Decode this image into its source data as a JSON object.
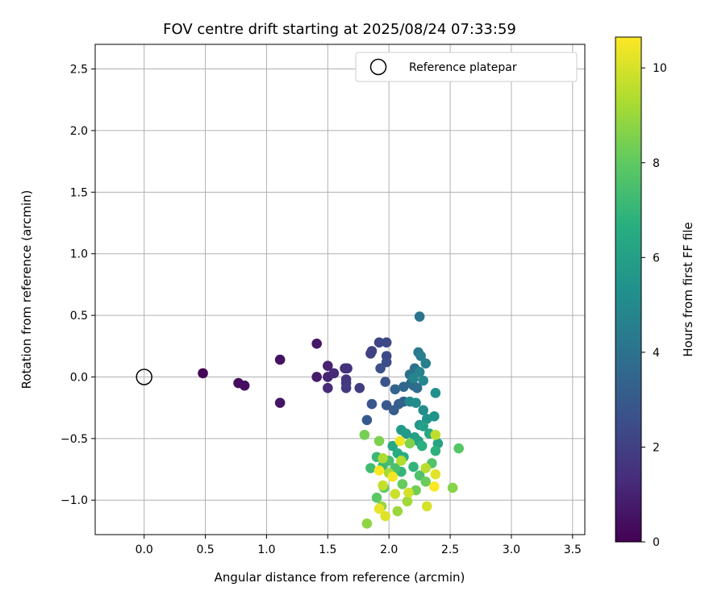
{
  "chart_data": {
    "type": "scatter",
    "title": "FOV centre drift starting at 2025/08/24 07:33:59",
    "xlabel": "Angular distance from reference (arcmin)",
    "ylabel": "Rotation from reference (arcmin)",
    "xlim": [
      -0.4,
      3.6
    ],
    "ylim": [
      -1.28,
      2.7
    ],
    "xticks": [
      "0.0",
      "0.5",
      "1.0",
      "1.5",
      "2.0",
      "2.5",
      "3.0",
      "3.5"
    ],
    "yticks": [
      "−1.0",
      "−0.5",
      "0.0",
      "0.5",
      "1.0",
      "1.5",
      "2.0",
      "2.5"
    ],
    "grid": true,
    "legend": {
      "placement": "top-right",
      "entries": [
        "Reference platepar"
      ]
    },
    "reference_point": {
      "x": 0.0,
      "y": 0.0
    },
    "colorbar": {
      "label": "Hours from first FF file",
      "colormap": "viridis",
      "range": [
        0,
        10.65
      ],
      "ticks": [
        "0",
        "2",
        "4",
        "6",
        "8",
        "10"
      ]
    },
    "points": [
      {
        "x": 0.48,
        "y": 0.03,
        "h": 0.1
      },
      {
        "x": 0.77,
        "y": -0.05,
        "h": 0.3
      },
      {
        "x": 0.82,
        "y": -0.07,
        "h": 0.4
      },
      {
        "x": 1.11,
        "y": 0.14,
        "h": 0.5
      },
      {
        "x": 1.11,
        "y": -0.21,
        "h": 0.6
      },
      {
        "x": 1.41,
        "y": 0.27,
        "h": 0.7
      },
      {
        "x": 1.41,
        "y": 0.0,
        "h": 0.8
      },
      {
        "x": 1.5,
        "y": 0.09,
        "h": 1.0
      },
      {
        "x": 1.5,
        "y": 0.0,
        "h": 1.1
      },
      {
        "x": 1.55,
        "y": 0.03,
        "h": 1.2
      },
      {
        "x": 1.5,
        "y": -0.09,
        "h": 1.3
      },
      {
        "x": 1.64,
        "y": 0.07,
        "h": 1.4
      },
      {
        "x": 1.66,
        "y": 0.07,
        "h": 1.5
      },
      {
        "x": 1.65,
        "y": -0.02,
        "h": 1.6
      },
      {
        "x": 1.65,
        "y": -0.05,
        "h": 1.7
      },
      {
        "x": 1.65,
        "y": -0.09,
        "h": 1.8
      },
      {
        "x": 1.76,
        "y": -0.09,
        "h": 1.9
      },
      {
        "x": 1.85,
        "y": 0.19,
        "h": 2.0
      },
      {
        "x": 1.86,
        "y": 0.21,
        "h": 2.1
      },
      {
        "x": 1.92,
        "y": 0.28,
        "h": 2.2
      },
      {
        "x": 1.98,
        "y": 0.28,
        "h": 2.3
      },
      {
        "x": 1.98,
        "y": 0.17,
        "h": 2.4
      },
      {
        "x": 1.98,
        "y": 0.12,
        "h": 2.5
      },
      {
        "x": 1.93,
        "y": 0.07,
        "h": 2.6
      },
      {
        "x": 1.97,
        "y": -0.04,
        "h": 2.7
      },
      {
        "x": 1.86,
        "y": -0.22,
        "h": 2.8
      },
      {
        "x": 1.98,
        "y": -0.23,
        "h": 2.9
      },
      {
        "x": 1.82,
        "y": -0.35,
        "h": 3.0
      },
      {
        "x": 2.04,
        "y": -0.27,
        "h": 3.1
      },
      {
        "x": 2.08,
        "y": -0.22,
        "h": 3.2
      },
      {
        "x": 2.12,
        "y": -0.2,
        "h": 3.3
      },
      {
        "x": 2.05,
        "y": -0.1,
        "h": 3.4
      },
      {
        "x": 2.12,
        "y": -0.08,
        "h": 3.5
      },
      {
        "x": 2.18,
        "y": -0.05,
        "h": 3.6
      },
      {
        "x": 2.2,
        "y": -0.07,
        "h": 3.7
      },
      {
        "x": 2.23,
        "y": -0.09,
        "h": 3.8
      },
      {
        "x": 2.17,
        "y": 0.02,
        "h": 3.9
      },
      {
        "x": 2.21,
        "y": 0.07,
        "h": 4.0
      },
      {
        "x": 2.25,
        "y": 0.49,
        "h": 4.1
      },
      {
        "x": 2.24,
        "y": 0.2,
        "h": 4.3
      },
      {
        "x": 2.26,
        "y": 0.17,
        "h": 4.5
      },
      {
        "x": 2.3,
        "y": 0.11,
        "h": 4.6
      },
      {
        "x": 2.25,
        "y": 0.04,
        "h": 4.7
      },
      {
        "x": 2.2,
        "y": -0.01,
        "h": 4.8
      },
      {
        "x": 2.28,
        "y": -0.03,
        "h": 4.9
      },
      {
        "x": 2.17,
        "y": -0.2,
        "h": 5.0
      },
      {
        "x": 2.22,
        "y": -0.21,
        "h": 5.1
      },
      {
        "x": 2.28,
        "y": -0.27,
        "h": 5.2
      },
      {
        "x": 2.38,
        "y": -0.13,
        "h": 5.3
      },
      {
        "x": 2.37,
        "y": -0.32,
        "h": 5.4
      },
      {
        "x": 2.31,
        "y": -0.34,
        "h": 5.5
      },
      {
        "x": 2.25,
        "y": -0.39,
        "h": 5.6
      },
      {
        "x": 2.1,
        "y": -0.43,
        "h": 5.7
      },
      {
        "x": 2.14,
        "y": -0.46,
        "h": 5.8
      },
      {
        "x": 2.21,
        "y": -0.49,
        "h": 5.9
      },
      {
        "x": 2.28,
        "y": -0.4,
        "h": 6.0
      },
      {
        "x": 2.24,
        "y": -0.52,
        "h": 6.1
      },
      {
        "x": 2.4,
        "y": -0.54,
        "h": 6.2
      },
      {
        "x": 2.33,
        "y": -0.46,
        "h": 6.3
      },
      {
        "x": 2.03,
        "y": -0.56,
        "h": 6.4
      },
      {
        "x": 2.07,
        "y": -0.62,
        "h": 6.5
      },
      {
        "x": 2.12,
        "y": -0.65,
        "h": 6.6
      },
      {
        "x": 2.27,
        "y": -0.56,
        "h": 6.7
      },
      {
        "x": 2.38,
        "y": -0.6,
        "h": 6.8
      },
      {
        "x": 2.2,
        "y": -0.73,
        "h": 6.9
      },
      {
        "x": 2.1,
        "y": -0.77,
        "h": 7.0
      },
      {
        "x": 1.9,
        "y": -0.65,
        "h": 7.1
      },
      {
        "x": 1.95,
        "y": -0.72,
        "h": 7.2
      },
      {
        "x": 1.85,
        "y": -0.74,
        "h": 7.3
      },
      {
        "x": 2.0,
        "y": -0.68,
        "h": 7.4
      },
      {
        "x": 2.05,
        "y": -0.74,
        "h": 7.5
      },
      {
        "x": 2.25,
        "y": -0.8,
        "h": 7.6
      },
      {
        "x": 2.35,
        "y": -0.7,
        "h": 7.7
      },
      {
        "x": 2.57,
        "y": -0.58,
        "h": 7.8
      },
      {
        "x": 1.9,
        "y": -0.98,
        "h": 7.9
      },
      {
        "x": 1.96,
        "y": -0.9,
        "h": 8.0
      },
      {
        "x": 2.11,
        "y": -0.87,
        "h": 8.1
      },
      {
        "x": 2.3,
        "y": -0.85,
        "h": 8.2
      },
      {
        "x": 2.22,
        "y": -0.92,
        "h": 8.3
      },
      {
        "x": 1.8,
        "y": -0.47,
        "h": 8.4
      },
      {
        "x": 1.92,
        "y": -0.52,
        "h": 8.5
      },
      {
        "x": 2.17,
        "y": -0.54,
        "h": 8.6
      },
      {
        "x": 2.52,
        "y": -0.9,
        "h": 8.7
      },
      {
        "x": 1.82,
        "y": -1.19,
        "h": 8.8
      },
      {
        "x": 1.94,
        "y": -1.05,
        "h": 8.9
      },
      {
        "x": 2.07,
        "y": -1.09,
        "h": 9.0
      },
      {
        "x": 2.15,
        "y": -1.01,
        "h": 9.1
      },
      {
        "x": 2.0,
        "y": -0.78,
        "h": 9.2
      },
      {
        "x": 1.95,
        "y": -0.66,
        "h": 9.3
      },
      {
        "x": 2.1,
        "y": -0.68,
        "h": 9.4
      },
      {
        "x": 2.3,
        "y": -0.74,
        "h": 9.5
      },
      {
        "x": 2.38,
        "y": -0.47,
        "h": 9.6
      },
      {
        "x": 1.95,
        "y": -0.88,
        "h": 9.7
      },
      {
        "x": 2.05,
        "y": -0.95,
        "h": 9.8
      },
      {
        "x": 2.16,
        "y": -0.94,
        "h": 9.9
      },
      {
        "x": 2.31,
        "y": -1.05,
        "h": 10.0
      },
      {
        "x": 1.97,
        "y": -1.13,
        "h": 10.1
      },
      {
        "x": 2.38,
        "y": -0.79,
        "h": 10.2
      },
      {
        "x": 1.92,
        "y": -1.07,
        "h": 10.3
      },
      {
        "x": 2.09,
        "y": -0.52,
        "h": 10.4
      },
      {
        "x": 2.03,
        "y": -0.81,
        "h": 10.5
      },
      {
        "x": 2.37,
        "y": -0.89,
        "h": 10.6
      },
      {
        "x": 1.92,
        "y": -0.76,
        "h": 10.6
      }
    ]
  }
}
